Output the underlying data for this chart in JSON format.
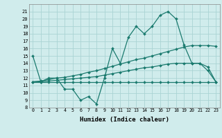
{
  "title": "",
  "xlabel": "Humidex (Indice chaleur)",
  "x": [
    0,
    1,
    2,
    3,
    4,
    5,
    6,
    7,
    8,
    9,
    10,
    11,
    12,
    13,
    14,
    15,
    16,
    17,
    18,
    19,
    20,
    21,
    22,
    23
  ],
  "line1": [
    15,
    11.5,
    12,
    12,
    10.5,
    10.5,
    9.0,
    9.5,
    8.5,
    12.0,
    16.0,
    14.0,
    17.5,
    19.0,
    18.0,
    19.0,
    20.5,
    21.0,
    20.0,
    16.5,
    14.0,
    14.0,
    13.0,
    11.5
  ],
  "line2": [
    11.5,
    11.6,
    11.8,
    12.0,
    12.1,
    12.3,
    12.5,
    12.8,
    13.0,
    13.3,
    13.6,
    13.9,
    14.2,
    14.5,
    14.7,
    15.0,
    15.3,
    15.6,
    15.9,
    16.2,
    16.4,
    16.4,
    16.4,
    16.3
  ],
  "line3": [
    11.5,
    11.5,
    11.6,
    11.7,
    11.8,
    11.9,
    12.0,
    12.1,
    12.2,
    12.4,
    12.6,
    12.8,
    13.0,
    13.2,
    13.4,
    13.5,
    13.7,
    13.9,
    14.0,
    14.0,
    14.0,
    14.0,
    13.5,
    11.5
  ],
  "line4": [
    11.5,
    11.5,
    11.5,
    11.5,
    11.5,
    11.5,
    11.5,
    11.5,
    11.5,
    11.5,
    11.5,
    11.5,
    11.5,
    11.5,
    11.5,
    11.5,
    11.5,
    11.5,
    11.5,
    11.5,
    11.5,
    11.5,
    11.5,
    11.5
  ],
  "line_color": "#1a7a6e",
  "bg_color": "#d0ecec",
  "grid_color": "#aad4d4",
  "ylim": [
    8,
    22
  ],
  "xlim": [
    -0.5,
    23.5
  ],
  "yticks": [
    8,
    9,
    10,
    11,
    12,
    13,
    14,
    15,
    16,
    17,
    18,
    19,
    20,
    21
  ],
  "xticks": [
    0,
    1,
    2,
    3,
    4,
    5,
    6,
    7,
    8,
    9,
    10,
    11,
    12,
    13,
    14,
    15,
    16,
    17,
    18,
    19,
    20,
    21,
    22,
    23
  ],
  "markersize": 2.0,
  "linewidth": 0.9
}
